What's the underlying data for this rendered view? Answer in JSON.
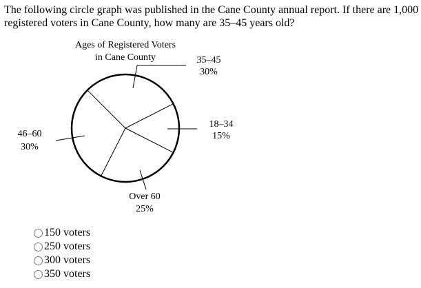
{
  "question": "The following circle graph was published in the Cane County annual report. If there are 1,000 registered voters in Cane County, how many are 35–45 years old?",
  "options": [
    "150 voters",
    "250 voters",
    "300 voters",
    "350 voters"
  ],
  "chart_data": {
    "type": "pie",
    "title": [
      "Ages of Registered Voters",
      "in Cane County"
    ],
    "slices": [
      {
        "label": "18–34",
        "value": 15,
        "display": "15%"
      },
      {
        "label": "35–45",
        "value": 30,
        "display": "30%"
      },
      {
        "label": "46–60",
        "value": 30,
        "display": "30%"
      },
      {
        "label": "Over 60",
        "value": 25,
        "display": "25%"
      }
    ]
  }
}
